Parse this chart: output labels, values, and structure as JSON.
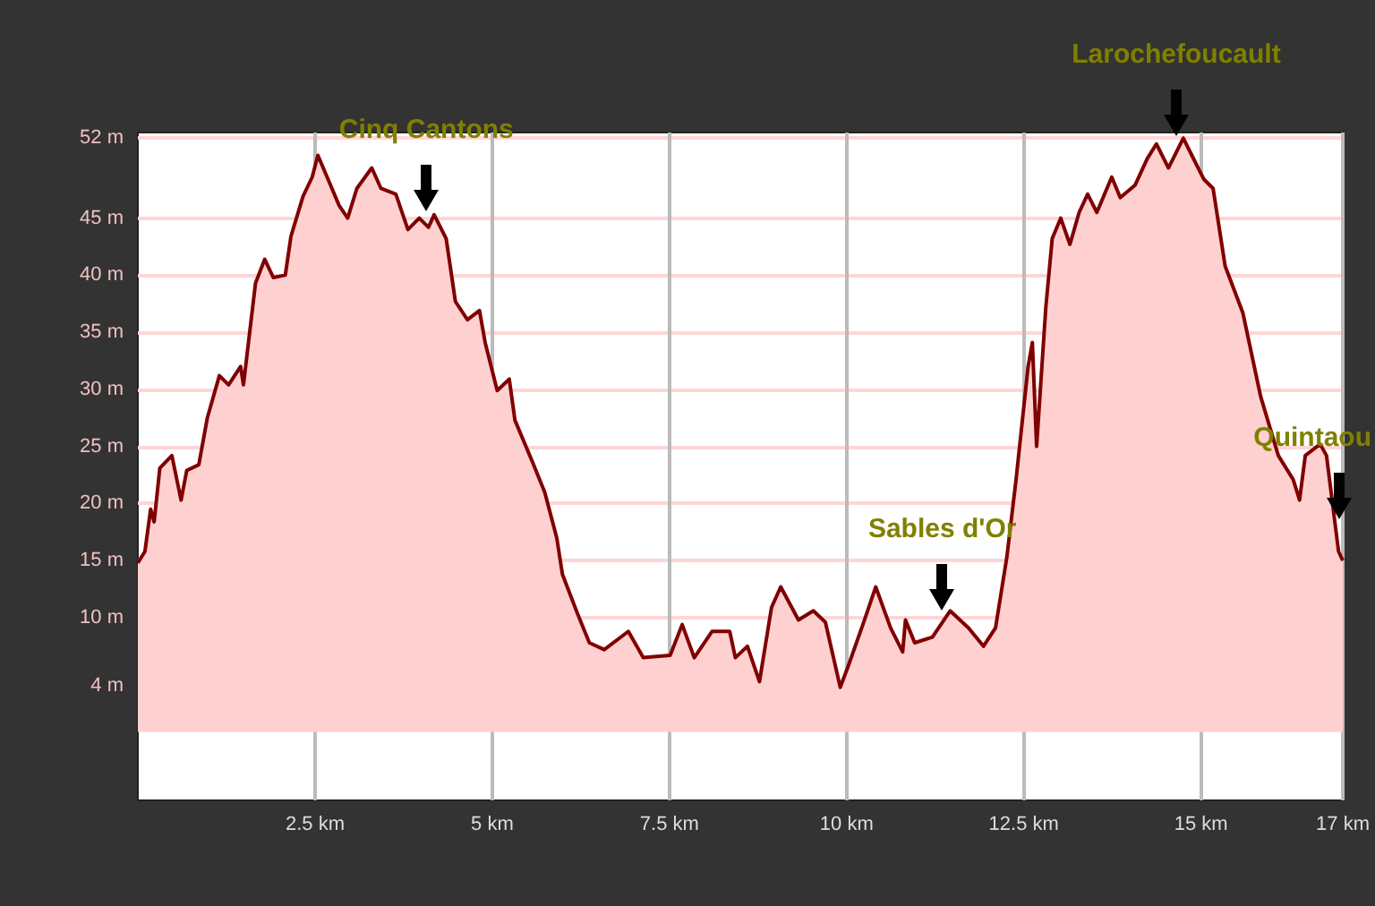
{
  "chart_data": {
    "type": "area",
    "color": "#800000",
    "x": [
      0,
      0.1,
      0.18,
      0.23,
      0.31,
      0.48,
      0.61,
      0.69,
      0.86,
      0.98,
      1.15,
      1.28,
      1.45,
      1.49,
      1.66,
      1.79,
      1.91,
      2.08,
      2.16,
      2.33,
      2.46,
      2.54,
      2.67,
      2.84,
      2.96,
      3.09,
      3.3,
      3.43,
      3.64,
      3.81,
      3.97,
      4.1,
      4.18,
      4.35,
      4.48,
      4.65,
      4.82,
      4.9,
      5.07,
      5.24,
      5.32,
      5.57,
      5.74,
      5.91,
      5.99,
      6.2,
      6.37,
      6.58,
      6.92,
      7.13,
      7.51,
      7.68,
      7.85,
      8.1,
      8.35,
      8.43,
      8.6,
      8.77,
      8.94,
      9.07,
      9.32,
      9.53,
      9.7,
      9.91,
      10.03,
      10.24,
      10.41,
      10.62,
      10.79,
      10.83,
      10.96,
      11.21,
      11.46,
      11.72,
      11.93,
      12.1,
      12.26,
      12.39,
      12.56,
      12.62,
      12.68,
      12.81,
      12.9,
      13.02,
      13.15,
      13.28,
      13.4,
      13.53,
      13.74,
      13.86,
      14.07,
      14.24,
      14.37,
      14.54,
      14.75,
      14.87,
      15.04,
      15.17,
      15.34,
      15.59,
      15.84,
      16.09,
      16.3,
      16.39,
      16.47,
      16.68,
      16.77,
      16.94,
      17
    ],
    "values": [
      14.8,
      15.8,
      19.5,
      18.4,
      23.1,
      24.2,
      20.3,
      22.9,
      23.4,
      27.5,
      31.2,
      30.4,
      32,
      30.4,
      39.3,
      41.4,
      39.8,
      40,
      43.4,
      46.9,
      48.6,
      50.5,
      48.6,
      46.1,
      45,
      47.6,
      49.4,
      47.6,
      47.1,
      44,
      45,
      44.2,
      45.3,
      43.2,
      37.7,
      36.1,
      36.9,
      34.1,
      29.9,
      30.9,
      27.3,
      23.6,
      21,
      17,
      13.8,
      10.4,
      7.8,
      7.2,
      8.8,
      6.5,
      6.7,
      9.4,
      6.5,
      8.8,
      8.8,
      6.5,
      7.5,
      4.4,
      10.9,
      12.7,
      9.8,
      10.6,
      9.6,
      3.9,
      5.9,
      9.6,
      12.7,
      9.1,
      7,
      9.8,
      7.8,
      8.3,
      10.6,
      9.1,
      7.5,
      9.1,
      15.3,
      22.1,
      32,
      34.1,
      25,
      37.2,
      43.2,
      45,
      42.7,
      45.5,
      47.1,
      45.5,
      48.6,
      46.8,
      47.9,
      50.2,
      51.5,
      49.4,
      52,
      50.5,
      48.4,
      47.6,
      40.8,
      36.7,
      29.4,
      24.2,
      22.1,
      20.3,
      24.2,
      25.2,
      24.2,
      15.8,
      15
    ],
    "xlim": [
      0,
      17
    ],
    "ylim": [
      -6,
      52.5
    ],
    "xticks": [
      {
        "value": 2.5,
        "label": "2.5 km"
      },
      {
        "value": 5,
        "label": "5 km"
      },
      {
        "value": 7.5,
        "label": "7.5 km"
      },
      {
        "value": 10,
        "label": "10 km"
      },
      {
        "value": 12.5,
        "label": "12.5 km"
      },
      {
        "value": 15,
        "label": "15 km"
      },
      {
        "value": 17,
        "label": "17 km"
      }
    ],
    "yticks": [
      {
        "value": 4,
        "label": "4 m"
      },
      {
        "value": 10,
        "label": "10 m"
      },
      {
        "value": 15,
        "label": "15 m"
      },
      {
        "value": 20,
        "label": "20 m"
      },
      {
        "value": 25,
        "label": "25 m"
      },
      {
        "value": 30,
        "label": "30 m"
      },
      {
        "value": 35,
        "label": "35 m"
      },
      {
        "value": 40,
        "label": "40 m"
      },
      {
        "value": 45,
        "label": "45 m"
      },
      {
        "value": 52,
        "label": "52 m"
      }
    ],
    "grid": true,
    "annotations": [
      {
        "text": "Cinq Cantons",
        "x": 4.07,
        "y": 45
      },
      {
        "text": "Sables d'Or",
        "x": 11.35,
        "y": 10
      },
      {
        "text": "Larochefoucault",
        "x": 14.65,
        "y": 51.5
      },
      {
        "text": "Quintaou",
        "x": 16.95,
        "y": 18
      }
    ]
  }
}
